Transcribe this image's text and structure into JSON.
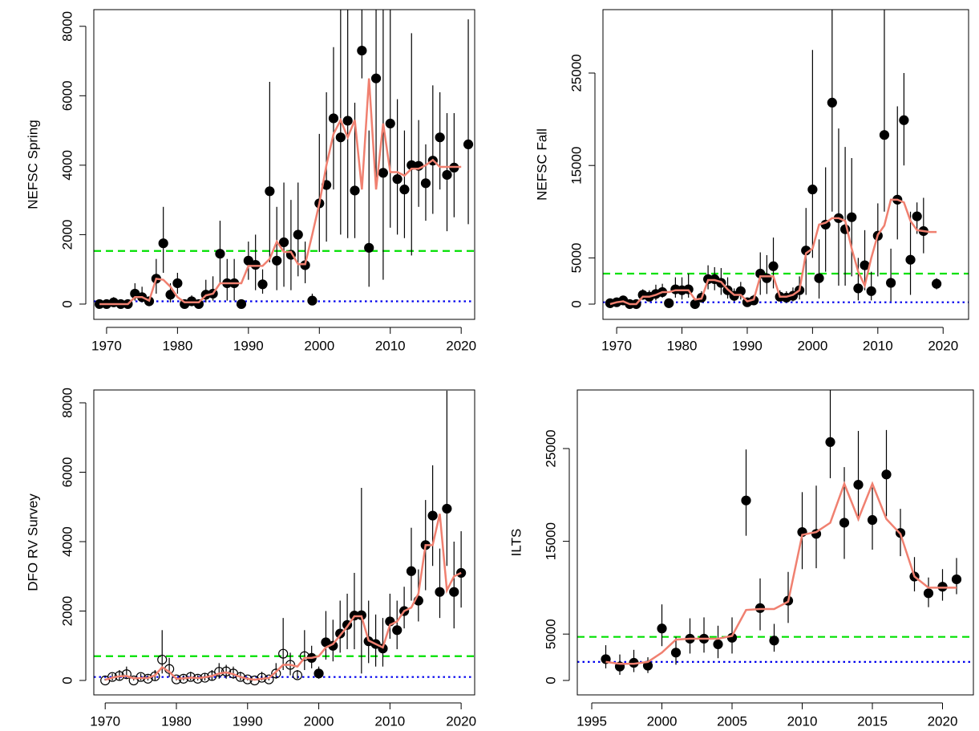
{
  "chart_data": [
    {
      "type": "scatter",
      "ylabel": "NEFSC Spring",
      "xlim": [
        1968.2,
        2021.9
      ],
      "ylim": [
        -440,
        8480
      ],
      "xticks": [
        1970,
        1980,
        1990,
        2000,
        2010,
        2020
      ],
      "yticks": [
        0,
        2000,
        4000,
        6000,
        8000
      ],
      "x": [
        1969,
        1970,
        1971,
        1972,
        1973,
        1974,
        1975,
        1976,
        1977,
        1978,
        1979,
        1980,
        1981,
        1982,
        1983,
        1984,
        1985,
        1986,
        1987,
        1988,
        1989,
        1990,
        1991,
        1992,
        1993,
        1994,
        1995,
        1996,
        1997,
        1998,
        1999,
        2000,
        2001,
        2002,
        2003,
        2004,
        2005,
        2006,
        2007,
        2008,
        2009,
        2010,
        2011,
        2012,
        2013,
        2014,
        2015,
        2016,
        2017,
        2018,
        2019,
        2020,
        2021
      ],
      "values": [
        0,
        0,
        50,
        0,
        0,
        300,
        200,
        80,
        730,
        1750,
        270,
        600,
        0,
        80,
        0,
        270,
        300,
        1450,
        600,
        600,
        0,
        1250,
        1130,
        570,
        3250,
        1250,
        1780,
        1420,
        2000,
        1120,
        100,
        2900,
        3430,
        5350,
        4800,
        5280,
        3270,
        7300,
        1620,
        6500,
        3780,
        5200,
        3600,
        3300,
        4000,
        3980,
        3480,
        4130,
        4800,
        3720,
        3930,
        null,
        4600
      ],
      "error_low": [
        0,
        0,
        0,
        0,
        0,
        100,
        50,
        0,
        300,
        900,
        50,
        300,
        0,
        0,
        0,
        50,
        100,
        600,
        100,
        100,
        0,
        700,
        400,
        300,
        1200,
        400,
        500,
        400,
        800,
        600,
        0,
        1500,
        1800,
        3300,
        2000,
        1900,
        1900,
        6500,
        500,
        3500,
        700,
        2200,
        2000,
        1900,
        1400,
        2800,
        2400,
        2600,
        3300,
        2100,
        2500,
        null,
        2300
      ],
      "error_high": [
        100,
        100,
        200,
        100,
        100,
        600,
        500,
        200,
        1300,
        2800,
        600,
        900,
        100,
        250,
        100,
        700,
        800,
        2400,
        1300,
        1300,
        100,
        1800,
        2000,
        1000,
        6400,
        2800,
        3500,
        3000,
        3500,
        1800,
        300,
        4900,
        6100,
        7400,
        8500,
        8500,
        5800,
        8500,
        5000,
        8500,
        8500,
        8500,
        5900,
        5000,
        7800,
        5300,
        4600,
        6300,
        6100,
        5500,
        5500,
        null,
        8200
      ],
      "fit": [
        0,
        0,
        0,
        0,
        0,
        200,
        200,
        100,
        730,
        700,
        500,
        200,
        50,
        50,
        50,
        250,
        300,
        600,
        600,
        600,
        600,
        1100,
        1100,
        1100,
        1300,
        1800,
        1500,
        1500,
        1150,
        1150,
        2000,
        2900,
        4000,
        4900,
        5300,
        4800,
        5300,
        3300,
        6500,
        3300,
        5200,
        3800,
        3800,
        3700,
        3900,
        3900,
        4000,
        4150,
        3950,
        3950,
        3950,
        3950,
        null
      ],
      "point_color": "#000000",
      "fit_color": "#f08070",
      "reference_lines": [
        {
          "value": 1530,
          "color": "#00e000",
          "style": "dashed"
        },
        {
          "value": 80,
          "color": "#0000ee",
          "style": "dotted"
        }
      ]
    },
    {
      "type": "scatter",
      "ylabel": "NEFSC Fall",
      "xlim": [
        1967.9,
        2023.9
      ],
      "ylim": [
        -1650,
        31860
      ],
      "xticks": [
        1970,
        1980,
        1990,
        2000,
        2010,
        2020
      ],
      "yticks": [
        0,
        5000,
        15000,
        25000
      ],
      "x": [
        1969,
        1970,
        1971,
        1972,
        1973,
        1974,
        1975,
        1976,
        1977,
        1978,
        1979,
        1980,
        1981,
        1982,
        1983,
        1984,
        1985,
        1986,
        1987,
        1988,
        1989,
        1990,
        1991,
        1992,
        1993,
        1994,
        1995,
        1996,
        1997,
        1998,
        1999,
        2000,
        2001,
        2002,
        2003,
        2004,
        2005,
        2006,
        2007,
        2008,
        2009,
        2010,
        2011,
        2012,
        2013,
        2014,
        2015,
        2016,
        2017,
        2018,
        2019
      ],
      "values": [
        100,
        200,
        400,
        0,
        0,
        1000,
        800,
        1100,
        1300,
        100,
        1600,
        1500,
        1600,
        0,
        700,
        2700,
        2700,
        2300,
        1500,
        900,
        1400,
        200,
        400,
        3300,
        2800,
        4100,
        800,
        700,
        900,
        1500,
        5800,
        12400,
        2800,
        8600,
        21800,
        9300,
        8100,
        9400,
        1700,
        4200,
        1400,
        7400,
        18300,
        2300,
        11300,
        19900,
        4800,
        9500,
        7900,
        null,
        2200
      ],
      "error_low": [
        0,
        0,
        100,
        0,
        0,
        500,
        300,
        400,
        700,
        0,
        700,
        500,
        700,
        0,
        200,
        1600,
        1500,
        1000,
        600,
        300,
        500,
        0,
        100,
        1000,
        1100,
        1700,
        300,
        200,
        300,
        500,
        1000,
        5000,
        600,
        3500,
        10000,
        2000,
        2000,
        3000,
        400,
        1500,
        400,
        3000,
        10000,
        300,
        7000,
        15000,
        1000,
        7600,
        5500,
        null,
        1600
      ],
      "error_high": [
        300,
        500,
        800,
        200,
        200,
        1600,
        1500,
        2100,
        2200,
        300,
        2900,
        2900,
        3300,
        200,
        1400,
        4200,
        4000,
        3900,
        2900,
        1700,
        2400,
        600,
        1000,
        5600,
        5300,
        7200,
        1500,
        1400,
        1800,
        3000,
        10400,
        27500,
        7000,
        14800,
        31900,
        19000,
        17000,
        15800,
        5000,
        8000,
        3500,
        10900,
        31900,
        6000,
        21400,
        25000,
        10000,
        11000,
        11500,
        null,
        2800
      ],
      "fit": [
        0,
        200,
        300,
        0,
        0,
        800,
        800,
        1000,
        1300,
        1300,
        1500,
        1500,
        1500,
        500,
        600,
        2600,
        2600,
        2400,
        1600,
        1000,
        1000,
        300,
        500,
        3000,
        3000,
        3000,
        800,
        800,
        1000,
        1500,
        5500,
        6000,
        8600,
        8800,
        9300,
        9300,
        9000,
        6000,
        3500,
        2000,
        5000,
        7500,
        8500,
        11300,
        11300,
        11000,
        9000,
        8000,
        7900,
        7800,
        7800
      ],
      "point_color": "#000000",
      "fit_color": "#f08070",
      "reference_lines": [
        {
          "value": 3300,
          "color": "#00e000",
          "style": "dashed"
        },
        {
          "value": 200,
          "color": "#0000ee",
          "style": "dotted"
        }
      ]
    },
    {
      "type": "scatter",
      "ylabel": "DFO RV Survey",
      "xlim": [
        1968.4,
        2021.9
      ],
      "ylim": [
        -416,
        8370
      ],
      "xticks": [
        1970,
        1980,
        1990,
        2000,
        2010,
        2020
      ],
      "yticks": [
        0,
        2000,
        4000,
        6000,
        8000
      ],
      "x": [
        1970,
        1971,
        1972,
        1973,
        1974,
        1975,
        1976,
        1977,
        1978,
        1979,
        1980,
        1981,
        1982,
        1983,
        1984,
        1985,
        1986,
        1987,
        1988,
        1989,
        1990,
        1991,
        1992,
        1993,
        1994,
        1995,
        1996,
        1997,
        1998,
        1999,
        2000,
        2001,
        2002,
        2003,
        2004,
        2005,
        2006,
        2007,
        2008,
        2009,
        2010,
        2011,
        2012,
        2013,
        2014,
        2015,
        2016,
        2017,
        2018,
        2019,
        2020
      ],
      "values": [
        0,
        100,
        130,
        180,
        0,
        100,
        50,
        120,
        600,
        330,
        30,
        50,
        100,
        50,
        80,
        130,
        250,
        260,
        200,
        100,
        30,
        0,
        80,
        30,
        200,
        770,
        450,
        150,
        700,
        650,
        200,
        1100,
        1000,
        1350,
        1600,
        1870,
        1880,
        1130,
        1050,
        920,
        1700,
        1450,
        2000,
        3150,
        2300,
        3900,
        4750,
        2550,
        4950,
        2550,
        3100
      ],
      "error_low": [
        0,
        0,
        0,
        50,
        0,
        0,
        0,
        0,
        200,
        100,
        0,
        0,
        0,
        0,
        0,
        0,
        50,
        50,
        50,
        0,
        0,
        0,
        0,
        0,
        50,
        300,
        150,
        50,
        300,
        350,
        50,
        600,
        550,
        800,
        900,
        900,
        200,
        500,
        400,
        400,
        1200,
        900,
        1500,
        2300,
        1700,
        2600,
        3300,
        1800,
        3300,
        1500,
        2100
      ],
      "error_high": [
        50,
        200,
        300,
        400,
        50,
        200,
        150,
        300,
        1450,
        650,
        100,
        150,
        250,
        150,
        200,
        300,
        500,
        450,
        400,
        250,
        100,
        50,
        250,
        100,
        500,
        1800,
        800,
        300,
        1450,
        1000,
        400,
        2000,
        1750,
        2300,
        2500,
        3100,
        5550,
        2300,
        1900,
        1800,
        2500,
        2300,
        2700,
        4400,
        3200,
        5200,
        6200,
        3800,
        8350,
        4000,
        4300
      ],
      "filled": [
        false,
        false,
        false,
        false,
        false,
        false,
        false,
        false,
        false,
        false,
        false,
        false,
        false,
        false,
        false,
        false,
        false,
        false,
        false,
        false,
        false,
        false,
        false,
        false,
        false,
        false,
        false,
        false,
        false,
        true,
        true,
        true,
        true,
        true,
        true,
        true,
        true,
        true,
        true,
        true,
        true,
        true,
        true,
        true,
        true,
        true,
        true,
        true,
        true,
        true,
        true
      ],
      "fit": [
        20,
        80,
        120,
        130,
        60,
        70,
        70,
        150,
        380,
        250,
        50,
        60,
        80,
        70,
        90,
        130,
        200,
        230,
        180,
        100,
        50,
        20,
        50,
        70,
        250,
        450,
        450,
        400,
        650,
        650,
        700,
        950,
        1050,
        1300,
        1550,
        1850,
        1850,
        1150,
        1050,
        950,
        1600,
        1700,
        2000,
        2100,
        2500,
        3900,
        3900,
        4800,
        2600,
        3000,
        3100
      ],
      "point_color": "#000000",
      "fit_color": "#f08070",
      "reference_lines": [
        {
          "value": 700,
          "color": "#00e000",
          "style": "dashed"
        },
        {
          "value": 100,
          "color": "#0000ee",
          "style": "dotted"
        }
      ]
    },
    {
      "type": "scatter",
      "ylabel": "ILTS",
      "xlim": [
        1993.97,
        2022.2
      ],
      "ylim": [
        -1557,
        31315
      ],
      "xticks": [
        1995,
        2000,
        2005,
        2010,
        2015,
        2020
      ],
      "yticks": [
        0,
        5000,
        15000,
        25000
      ],
      "x": [
        1996,
        1997,
        1998,
        1999,
        2000,
        2001,
        2002,
        2003,
        2004,
        2005,
        2006,
        2007,
        2008,
        2009,
        2010,
        2011,
        2012,
        2013,
        2014,
        2015,
        2016,
        2017,
        2018,
        2019,
        2020,
        2021
      ],
      "values": [
        2300,
        1500,
        1900,
        1600,
        5600,
        3000,
        4500,
        4500,
        3900,
        4600,
        19400,
        7800,
        4300,
        8600,
        16000,
        15800,
        25700,
        17000,
        21100,
        17300,
        22200,
        15900,
        11200,
        9400,
        10100,
        10900
      ],
      "error_low": [
        1300,
        600,
        900,
        800,
        3700,
        1700,
        2900,
        3000,
        2400,
        2900,
        15600,
        5400,
        3100,
        6200,
        12000,
        12100,
        21800,
        13100,
        17200,
        14100,
        17700,
        13400,
        9600,
        7900,
        8600,
        9300
      ],
      "error_high": [
        3800,
        2800,
        3300,
        2500,
        8200,
        4700,
        6700,
        6800,
        5900,
        6800,
        24900,
        11000,
        6100,
        11700,
        20300,
        21000,
        32000,
        23000,
        26900,
        20800,
        27000,
        18500,
        13300,
        11100,
        12000,
        13200
      ],
      "fit": [
        2000,
        1800,
        1800,
        2000,
        3000,
        4400,
        4500,
        4500,
        4500,
        4800,
        7600,
        7700,
        7700,
        8500,
        15700,
        16000,
        17000,
        21200,
        17400,
        21200,
        17400,
        15800,
        11200,
        10000,
        10000,
        10000
      ],
      "point_color": "#000000",
      "fit_color": "#f08070",
      "reference_lines": [
        {
          "value": 4700,
          "color": "#00e000",
          "style": "dashed"
        },
        {
          "value": 2000,
          "color": "#0000ee",
          "style": "dotted"
        }
      ]
    }
  ]
}
